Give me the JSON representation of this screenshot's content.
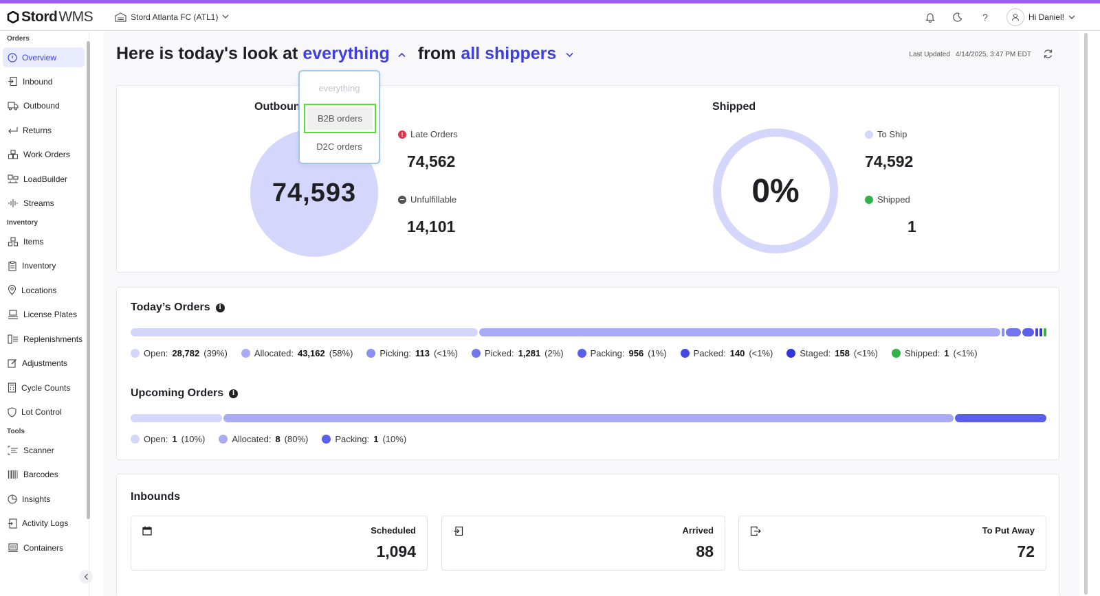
{
  "app": {
    "brand": "Stord",
    "product": "WMS",
    "facility": "Stord Atlanta FC (ATL1)",
    "greeting": "Hi Daniel!"
  },
  "sidebar": {
    "sections": [
      {
        "title": "Orders",
        "items": [
          "Overview",
          "Inbound",
          "Outbound",
          "Returns",
          "Work Orders",
          "LoadBuilder",
          "Streams"
        ]
      },
      {
        "title": "Inventory",
        "items": [
          "Items",
          "Inventory",
          "Locations",
          "License Plates",
          "Replenishments",
          "Adjustments",
          "Cycle Counts",
          "Lot Control"
        ]
      },
      {
        "title": "Tools",
        "items": [
          "Scanner",
          "Barcodes",
          "Insights",
          "Activity Logs",
          "Containers"
        ]
      }
    ],
    "active": "Overview"
  },
  "header": {
    "prefix": "Here is today's look at",
    "scope": "everything",
    "from": "from",
    "shippers": "all shippers",
    "last_updated_label": "Last Updated",
    "last_updated_value": "4/14/2025, 3:47 PM EDT"
  },
  "dropdown": {
    "options": [
      "everything",
      "B2B orders",
      "D2C orders"
    ],
    "disabled": "everything",
    "highlighted": "B2B orders"
  },
  "outbound": {
    "title": "Outboun",
    "total": "74,593",
    "late_label": "Late Orders",
    "late_value": "74,562",
    "unfulfillable_label": "Unfulfillable",
    "unfulfillable_value": "14,101"
  },
  "shipped": {
    "title": "Shipped",
    "percent_text": "0%",
    "to_ship_label": "To Ship",
    "to_ship_value": "74,592",
    "shipped_label": "Shipped",
    "shipped_value": "1"
  },
  "todays_orders": {
    "title": "Today’s Orders",
    "segments": [
      {
        "label": "Open:",
        "value": "28,782",
        "pct": "(39%)",
        "share": 38.8,
        "color": "#d5d6fb"
      },
      {
        "label": "Allocated:",
        "value": "43,162",
        "pct": "(58%)",
        "share": 58.2,
        "color": "#a9acf5"
      },
      {
        "label": "Picking:",
        "value": "113",
        "pct": "(<1%)",
        "share": 0.15,
        "color": "#8c90f2"
      },
      {
        "label": "Picked:",
        "value": "1,281",
        "pct": "(2%)",
        "share": 1.7,
        "color": "#7277ee"
      },
      {
        "label": "Packing:",
        "value": "956",
        "pct": "(1%)",
        "share": 1.3,
        "color": "#5a5fe9"
      },
      {
        "label": "Packed:",
        "value": "140",
        "pct": "(<1%)",
        "share": 0.19,
        "color": "#4348e3"
      },
      {
        "label": "Staged:",
        "value": "158",
        "pct": "(<1%)",
        "share": 0.21,
        "color": "#3035dc"
      },
      {
        "label": "Shipped:",
        "value": "1",
        "pct": "(<1%)",
        "share": 0.01,
        "color": "#2fb34a"
      }
    ]
  },
  "upcoming_orders": {
    "title": "Upcoming Orders",
    "segments": [
      {
        "label": "Open:",
        "value": "1",
        "pct": "(10%)",
        "share": 10,
        "color": "#d5d6fb"
      },
      {
        "label": "Allocated:",
        "value": "8",
        "pct": "(80%)",
        "share": 80,
        "color": "#a9acf5"
      },
      {
        "label": "Packing:",
        "value": "1",
        "pct": "(10%)",
        "share": 10,
        "color": "#5a5fe9"
      }
    ]
  },
  "inbounds": {
    "title": "Inbounds",
    "cards": [
      {
        "label": "Scheduled",
        "value": "1,094",
        "icon": "calendar-icon"
      },
      {
        "label": "Arrived",
        "value": "88",
        "icon": "arrive-icon"
      },
      {
        "label": "To Put Away",
        "value": "72",
        "icon": "putaway-icon"
      }
    ]
  },
  "colors": {
    "accent": "#3f3fe0",
    "late": "#e0344b",
    "unfulfillable": "#555555",
    "to_ship": "#d5d6fb",
    "shipped": "#2fb34a",
    "stripe": "#9b5cf0"
  }
}
